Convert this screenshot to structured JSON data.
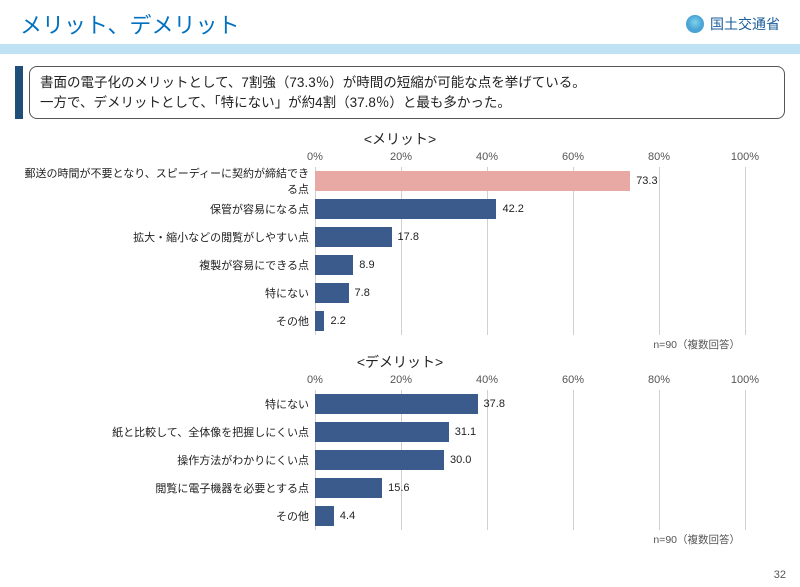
{
  "header": {
    "title": "メリット、デメリット",
    "ministry": "国土交通省"
  },
  "summary": {
    "line1": "書面の電子化のメリットとして、7割強（73.3％）が時間の短縮が可能な点を挙げている。",
    "line2": "一方で、デメリットとして、「特にない」が約4割（37.8％）と最も多かった。"
  },
  "merit_chart": {
    "title": "<メリット>",
    "type": "bar",
    "xmax": 100,
    "ticks": [
      0,
      20,
      40,
      60,
      80,
      100
    ],
    "tick_labels": [
      "0%",
      "20%",
      "40%",
      "60%",
      "80%",
      "100%"
    ],
    "bar_color": "#3b5b8c",
    "highlight_color": "#e8a9a4",
    "grid_color": "#d0d0d0",
    "note": "n=90（複数回答）",
    "items": [
      {
        "label": "郵送の時間が不要となり、スピーディーに契約が締結できる点",
        "value": 73.3,
        "highlight": true
      },
      {
        "label": "保管が容易になる点",
        "value": 42.2,
        "highlight": false
      },
      {
        "label": "拡大・縮小などの閲覧がしやすい点",
        "value": 17.8,
        "highlight": false
      },
      {
        "label": "複製が容易にできる点",
        "value": 8.9,
        "highlight": false
      },
      {
        "label": "特にない",
        "value": 7.8,
        "highlight": false
      },
      {
        "label": "その他",
        "value": 2.2,
        "highlight": false
      }
    ]
  },
  "demerit_chart": {
    "title": "<デメリット>",
    "type": "bar",
    "xmax": 100,
    "ticks": [
      0,
      20,
      40,
      60,
      80,
      100
    ],
    "tick_labels": [
      "0%",
      "20%",
      "40%",
      "60%",
      "80%",
      "100%"
    ],
    "bar_color": "#3b5b8c",
    "grid_color": "#d0d0d0",
    "note": "n=90（複数回答）",
    "items": [
      {
        "label": "特にない",
        "value": 37.8,
        "highlight": false
      },
      {
        "label": "紙と比較して、全体像を把握しにくい点",
        "value": 31.1,
        "highlight": false
      },
      {
        "label": "操作方法がわかりにくい点",
        "value": 30.0,
        "display": "30.0",
        "highlight": false
      },
      {
        "label": "閲覧に電子機器を必要とする点",
        "value": 15.6,
        "highlight": false
      },
      {
        "label": "その他",
        "value": 4.4,
        "highlight": false
      }
    ]
  },
  "page_number": "32"
}
